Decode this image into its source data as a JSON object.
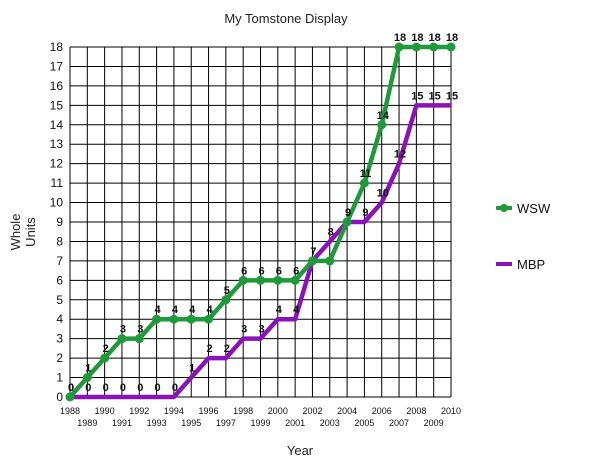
{
  "chart_data": {
    "type": "line",
    "title": "My Tomstone Display",
    "xlabel": "Year",
    "ylabel": [
      "Whole",
      "Units"
    ],
    "x": [
      1988,
      1989,
      1990,
      1991,
      1992,
      1993,
      1994,
      1995,
      1996,
      1997,
      1998,
      1999,
      2000,
      2001,
      2002,
      2003,
      2004,
      2005,
      2006,
      2007,
      2008,
      2009,
      2010
    ],
    "xlim": [
      1988,
      2010
    ],
    "ylim": [
      0,
      18
    ],
    "grid": true,
    "legend": "right",
    "series": [
      {
        "name": "WSW",
        "color": "#1f9a3a",
        "markers": true,
        "values": [
          0,
          1,
          2,
          3,
          3,
          4,
          4,
          4,
          4,
          5,
          6,
          6,
          6,
          6,
          7,
          7,
          9,
          11,
          14,
          18,
          18,
          18,
          18
        ],
        "labels": [
          0,
          1,
          2,
          3,
          3,
          4,
          4,
          4,
          4,
          5,
          6,
          6,
          6,
          6,
          7,
          null,
          9,
          11,
          14,
          18,
          18,
          18,
          18
        ]
      },
      {
        "name": "MBP",
        "color": "#8a12b8",
        "markers": false,
        "values": [
          0,
          0,
          0,
          0,
          0,
          0,
          0,
          1,
          2,
          2,
          3,
          3,
          4,
          4,
          7,
          8,
          9,
          9,
          10,
          12,
          15,
          15,
          15
        ],
        "labels": [
          0,
          0,
          0,
          0,
          0,
          0,
          0,
          1,
          2,
          2,
          3,
          3,
          4,
          4,
          null,
          8,
          9,
          9,
          10,
          12,
          15,
          15,
          15
        ]
      }
    ]
  }
}
